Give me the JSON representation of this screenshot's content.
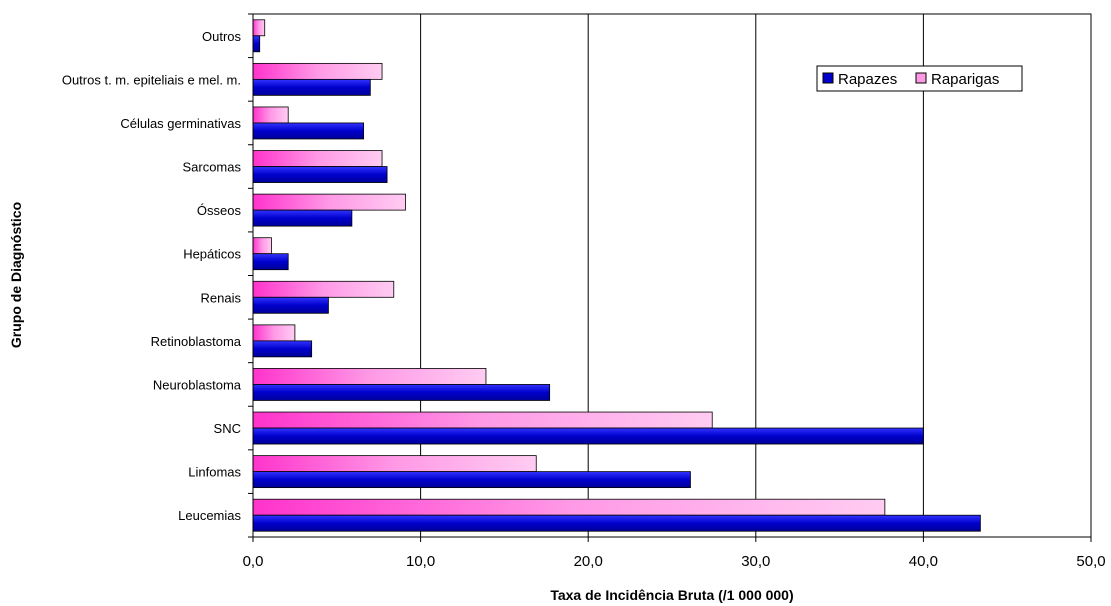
{
  "chart_data": {
    "type": "bar",
    "orientation": "horizontal",
    "categories": [
      "Leucemias",
      "Linfomas",
      "SNC",
      "Neuroblastoma",
      "Retinoblastoma",
      "Renais",
      "Hepáticos",
      "Ósseos",
      "Sarcomas",
      "Células germinativas",
      "Outros t. m. epiteliais e mel. m.",
      "Outros"
    ],
    "series": [
      {
        "name": "Rapazes",
        "color": "#0000cc",
        "values": [
          43.4,
          26.1,
          40.0,
          17.7,
          3.5,
          4.5,
          2.1,
          5.9,
          8.0,
          6.6,
          7.0,
          0.4
        ]
      },
      {
        "name": "Raparigas",
        "color": "#ff66cc",
        "values": [
          37.7,
          16.9,
          27.4,
          13.9,
          2.5,
          8.4,
          1.1,
          9.1,
          7.7,
          2.1,
          7.7,
          0.7
        ]
      }
    ],
    "xlabel": "Taxa de Incidência Bruta (/1 000 000)",
    "ylabel": "Grupo de Diagnóstico",
    "xlim": [
      0,
      50
    ],
    "xticks": [
      "0,0",
      "10,0",
      "20,0",
      "30,0",
      "40,0",
      "50,0"
    ],
    "grid": "vertical",
    "legend_position": "top-right"
  }
}
